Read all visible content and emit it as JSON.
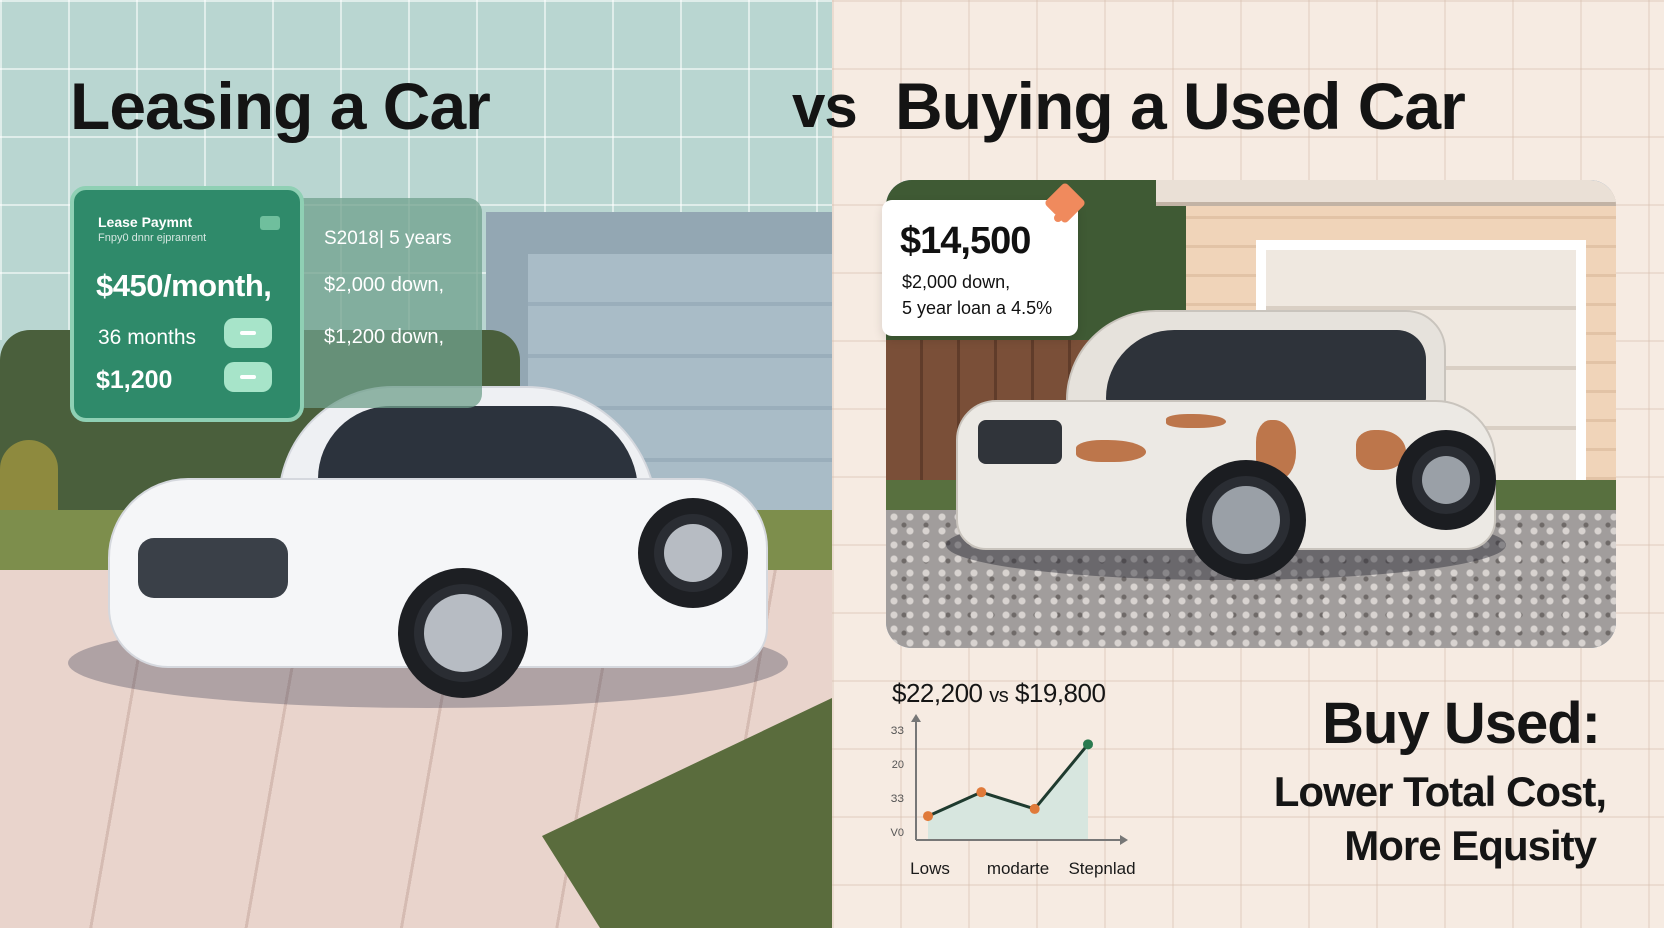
{
  "titles": {
    "left": "Leasing a Car",
    "vs": "vs",
    "right": "Buying a Used Car"
  },
  "lease_card": {
    "heading": "Lease Paymnt",
    "subheading": "Fnpy0 dnnr ejpranrent",
    "price": "$450/month,",
    "term": "36 months",
    "amount": "$1,200"
  },
  "lease_panel": {
    "line1": "S2018| 5 years",
    "line2": "$2,000 down,",
    "line3": "$1,200 down,"
  },
  "used_tag": {
    "price": "$14,500",
    "down": "$2,000 down,",
    "loan": "5 year loan a 4.5%"
  },
  "chart_data": {
    "type": "line",
    "title_a": "$22,200",
    "title_vs": "vs",
    "title_b": "$19,800",
    "y_tick_labels": [
      "ЗЗ",
      "20",
      "ЗЗ",
      "V0"
    ],
    "x_tick_labels": [
      "Lows",
      "modarte",
      "Stepnlad"
    ],
    "series": [
      {
        "x": [
          0,
          1,
          2,
          3
        ],
        "y": [
          1.0,
          2.0,
          1.3,
          4.0
        ]
      }
    ],
    "ylim": [
      0,
      4.6
    ],
    "area_fill": "#d7e6df",
    "line_color": "#1f3b2f",
    "point_colors": [
      "#e07a3a",
      "#e07a3a",
      "#e07a3a",
      "#2a7a4f"
    ]
  },
  "verdict": {
    "head": "Buy Used:",
    "line1": "Lower Total Cost,",
    "line2": "More Equsity"
  }
}
